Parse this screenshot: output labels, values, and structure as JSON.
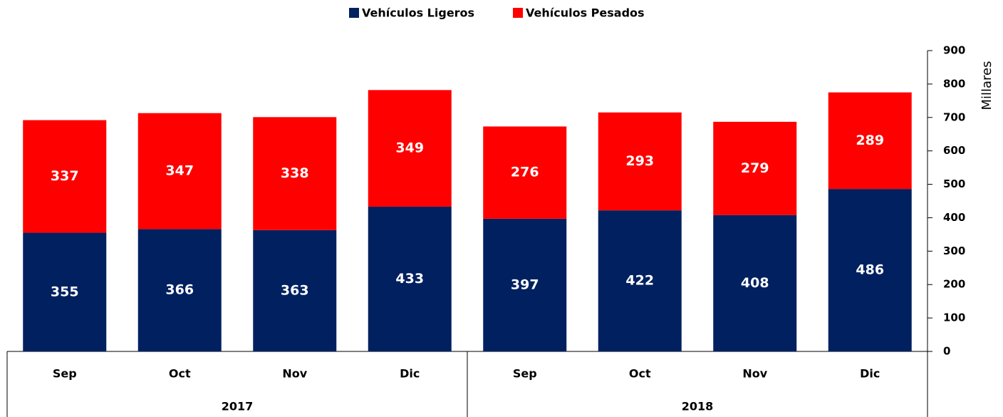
{
  "chart_data": {
    "type": "stacked_bar",
    "categories": [
      "Sep",
      "Oct",
      "Nov",
      "Dic",
      "Sep",
      "Oct",
      "Nov",
      "Dic"
    ],
    "groups": [
      {
        "label": "2017",
        "size": 4
      },
      {
        "label": "2018",
        "size": 4
      }
    ],
    "series": [
      {
        "name": "Vehículos Ligeros",
        "color": "#002060",
        "values": [
          355,
          366,
          363,
          433,
          397,
          422,
          408,
          486
        ]
      },
      {
        "name": "Vehículos Pesados",
        "color": "#ff0000",
        "values": [
          337,
          347,
          338,
          349,
          276,
          293,
          279,
          289
        ]
      }
    ],
    "y_axis_label": "Millares",
    "ylim": [
      0,
      900
    ],
    "yticks": [
      0,
      100,
      200,
      300,
      400,
      500,
      600,
      700,
      800,
      900
    ],
    "y_axis_side": "right",
    "legend": "top",
    "grid": false
  }
}
